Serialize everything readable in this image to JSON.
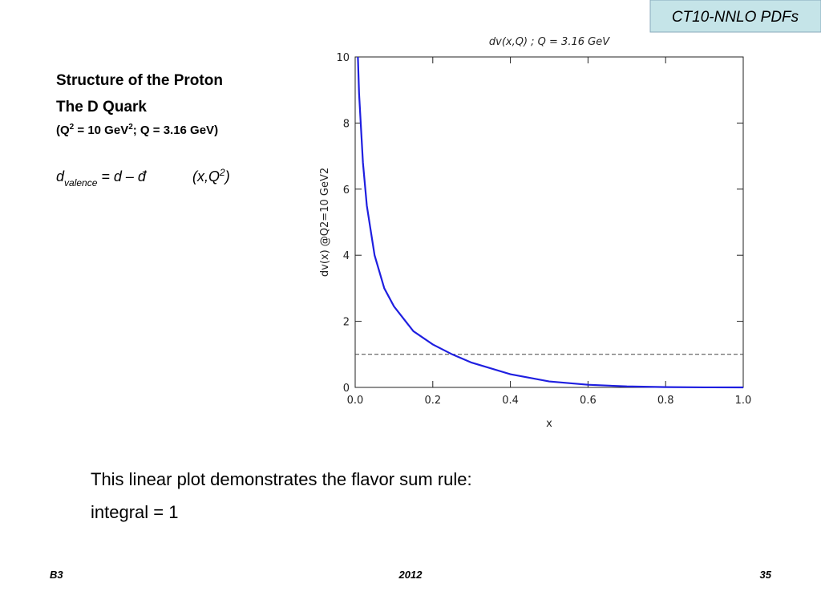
{
  "header": {
    "tag": "CT10-NNLO PDFs"
  },
  "intro": {
    "title": "Structure of the Proton",
    "subtitle": "The D Quark",
    "conditions": [
      "(Q",
      "2",
      " = 10 GeV",
      "2",
      "; Q = 3.16 GeV)"
    ],
    "formula": [
      "d",
      "valence",
      " = d – đ",
      "(x,Q",
      "2",
      ")"
    ]
  },
  "body": [
    "This linear plot demonstrates the flavor sum rule:",
    "integral = 1"
  ],
  "footer": {
    "left": "B3",
    "center": "2012",
    "right": "35"
  },
  "chart_data": {
    "type": "line",
    "title": "dv(x,Q) ; Q = 3.16 GeV",
    "x_label": "x",
    "y_label": "dv(x) @Q2=10 GeV2",
    "x": [
      0.007,
      0.01,
      0.02,
      0.03,
      0.05,
      0.075,
      0.1,
      0.15,
      0.2,
      0.25,
      0.3,
      0.4,
      0.5,
      0.6,
      0.7,
      0.8,
      0.9,
      1.0
    ],
    "values": [
      10,
      8.9,
      6.8,
      5.5,
      4.0,
      3.0,
      2.45,
      1.7,
      1.3,
      1.0,
      0.75,
      0.4,
      0.18,
      0.08,
      0.03,
      0.01,
      0.002,
      0
    ],
    "color": "#1f1fe0",
    "reference_line": 1,
    "xlim": [
      0,
      1
    ],
    "ylim": [
      0,
      10
    ],
    "xticks": [
      {
        "value": 0,
        "label": "0.0"
      },
      0.2,
      0.4,
      0.6,
      0.8,
      {
        "value": 1,
        "label": "1.0"
      }
    ],
    "yticks": [
      0,
      2,
      4,
      6,
      8,
      10
    ],
    "grid": false
  }
}
